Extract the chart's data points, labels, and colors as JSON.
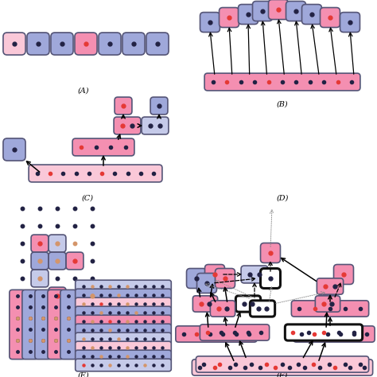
{
  "pink": "#F48FB1",
  "pink_light": "#FAC8D8",
  "pink_bg": "#FADADD",
  "blue": "#9FA8DA",
  "blue_light": "#C5CAE9",
  "red": "#E53935",
  "dark": "#222244",
  "orange": "#D4956A",
  "bg": "#FFFFFF",
  "panel_labels": [
    "(A)",
    "(B)",
    "(C)",
    "(D)",
    "(E)",
    "(F)"
  ]
}
